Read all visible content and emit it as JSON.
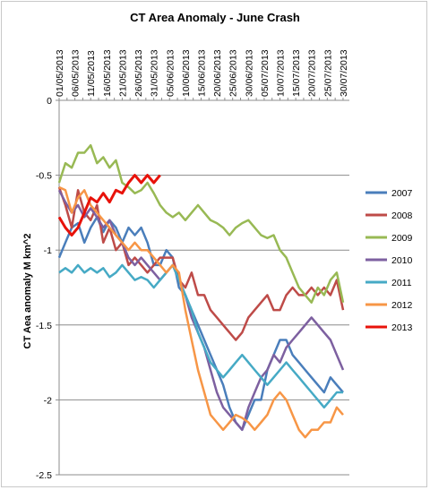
{
  "chart_data": {
    "type": "line",
    "title": "CT Area Anomaly - June Crash",
    "xlabel": "",
    "ylabel": "CT Aea anomaly M km^2",
    "ylim": [
      -2.5,
      0
    ],
    "yticks": [
      0,
      -0.5,
      -1,
      -1.5,
      -2,
      -2.5
    ],
    "ytick_labels": [
      "0",
      "-0.5",
      "-1",
      "-1.5",
      "-2",
      "-2.5"
    ],
    "x_range": [
      "01/05/2013",
      "01/08/2013"
    ],
    "x_tick_labels": [
      "01/05/2013",
      "06/05/2013",
      "11/05/2013",
      "16/05/2013",
      "21/05/2013",
      "26/05/2013",
      "31/05/2013",
      "05/06/2013",
      "10/06/2013",
      "15/06/2013",
      "20/06/2013",
      "25/06/2013",
      "30/06/2013",
      "05/07/2013",
      "10/07/2013",
      "15/07/2013",
      "20/07/2013",
      "25/07/2013",
      "30/07/2013"
    ],
    "x_tick_days": [
      0,
      5,
      10,
      15,
      20,
      25,
      30,
      35,
      40,
      45,
      50,
      55,
      60,
      65,
      70,
      75,
      80,
      85,
      90
    ],
    "grid": "horizontal",
    "legend_position": "right",
    "series": [
      {
        "name": "2007",
        "color": "#4a7ebb",
        "points": [
          [
            0,
            -1.05
          ],
          [
            2,
            -0.95
          ],
          [
            4,
            -0.85
          ],
          [
            6,
            -0.82
          ],
          [
            8,
            -0.95
          ],
          [
            10,
            -0.85
          ],
          [
            12,
            -0.78
          ],
          [
            14,
            -0.88
          ],
          [
            16,
            -0.8
          ],
          [
            18,
            -0.85
          ],
          [
            20,
            -0.95
          ],
          [
            22,
            -0.85
          ],
          [
            24,
            -0.9
          ],
          [
            26,
            -0.85
          ],
          [
            28,
            -0.95
          ],
          [
            30,
            -1.1
          ],
          [
            32,
            -1.1
          ],
          [
            34,
            -1.0
          ],
          [
            36,
            -1.05
          ],
          [
            38,
            -1.25
          ],
          [
            40,
            -1.3
          ],
          [
            42,
            -1.4
          ],
          [
            44,
            -1.5
          ],
          [
            46,
            -1.6
          ],
          [
            48,
            -1.7
          ],
          [
            50,
            -1.8
          ],
          [
            52,
            -1.9
          ],
          [
            54,
            -2.05
          ],
          [
            56,
            -2.15
          ],
          [
            58,
            -2.2
          ],
          [
            60,
            -2.1
          ],
          [
            62,
            -2.0
          ],
          [
            64,
            -2.0
          ],
          [
            66,
            -1.8
          ],
          [
            68,
            -1.7
          ],
          [
            70,
            -1.6
          ],
          [
            72,
            -1.6
          ],
          [
            74,
            -1.7
          ],
          [
            76,
            -1.75
          ],
          [
            78,
            -1.8
          ],
          [
            80,
            -1.85
          ],
          [
            82,
            -1.9
          ],
          [
            84,
            -1.95
          ],
          [
            86,
            -1.85
          ],
          [
            88,
            -1.9
          ],
          [
            90,
            -1.95
          ]
        ]
      },
      {
        "name": "2008",
        "color": "#be4b48",
        "points": [
          [
            0,
            -0.58
          ],
          [
            2,
            -0.7
          ],
          [
            4,
            -0.85
          ],
          [
            6,
            -0.6
          ],
          [
            8,
            -0.75
          ],
          [
            10,
            -0.8
          ],
          [
            12,
            -0.7
          ],
          [
            14,
            -0.95
          ],
          [
            16,
            -0.85
          ],
          [
            18,
            -1.0
          ],
          [
            20,
            -0.95
          ],
          [
            22,
            -1.1
          ],
          [
            24,
            -1.05
          ],
          [
            26,
            -1.1
          ],
          [
            28,
            -1.15
          ],
          [
            30,
            -1.1
          ],
          [
            32,
            -1.05
          ],
          [
            34,
            -1.05
          ],
          [
            36,
            -1.05
          ],
          [
            38,
            -1.2
          ],
          [
            40,
            -1.25
          ],
          [
            42,
            -1.15
          ],
          [
            44,
            -1.3
          ],
          [
            46,
            -1.3
          ],
          [
            48,
            -1.4
          ],
          [
            50,
            -1.45
          ],
          [
            52,
            -1.5
          ],
          [
            54,
            -1.55
          ],
          [
            56,
            -1.6
          ],
          [
            58,
            -1.55
          ],
          [
            60,
            -1.45
          ],
          [
            62,
            -1.4
          ],
          [
            64,
            -1.35
          ],
          [
            66,
            -1.3
          ],
          [
            68,
            -1.4
          ],
          [
            70,
            -1.4
          ],
          [
            72,
            -1.3
          ],
          [
            74,
            -1.25
          ],
          [
            76,
            -1.3
          ],
          [
            78,
            -1.3
          ],
          [
            80,
            -1.25
          ],
          [
            82,
            -1.3
          ],
          [
            84,
            -1.25
          ],
          [
            86,
            -1.3
          ],
          [
            88,
            -1.2
          ],
          [
            90,
            -1.4
          ]
        ]
      },
      {
        "name": "2009",
        "color": "#98b954",
        "points": [
          [
            0,
            -0.55
          ],
          [
            2,
            -0.42
          ],
          [
            4,
            -0.45
          ],
          [
            6,
            -0.35
          ],
          [
            8,
            -0.35
          ],
          [
            10,
            -0.3
          ],
          [
            12,
            -0.42
          ],
          [
            14,
            -0.38
          ],
          [
            16,
            -0.45
          ],
          [
            18,
            -0.4
          ],
          [
            20,
            -0.55
          ],
          [
            22,
            -0.58
          ],
          [
            24,
            -0.62
          ],
          [
            26,
            -0.6
          ],
          [
            28,
            -0.55
          ],
          [
            30,
            -0.62
          ],
          [
            32,
            -0.7
          ],
          [
            34,
            -0.75
          ],
          [
            36,
            -0.78
          ],
          [
            38,
            -0.75
          ],
          [
            40,
            -0.8
          ],
          [
            42,
            -0.75
          ],
          [
            44,
            -0.7
          ],
          [
            46,
            -0.75
          ],
          [
            48,
            -0.8
          ],
          [
            50,
            -0.82
          ],
          [
            52,
            -0.85
          ],
          [
            54,
            -0.9
          ],
          [
            56,
            -0.85
          ],
          [
            58,
            -0.82
          ],
          [
            60,
            -0.8
          ],
          [
            62,
            -0.85
          ],
          [
            64,
            -0.9
          ],
          [
            66,
            -0.92
          ],
          [
            68,
            -0.9
          ],
          [
            70,
            -1.0
          ],
          [
            72,
            -1.05
          ],
          [
            74,
            -1.15
          ],
          [
            76,
            -1.25
          ],
          [
            78,
            -1.3
          ],
          [
            80,
            -1.35
          ],
          [
            82,
            -1.25
          ],
          [
            84,
            -1.3
          ],
          [
            86,
            -1.2
          ],
          [
            88,
            -1.15
          ],
          [
            90,
            -1.35
          ]
        ]
      },
      {
        "name": "2010",
        "color": "#7d60a0",
        "points": [
          [
            0,
            -0.6
          ],
          [
            2,
            -0.68
          ],
          [
            4,
            -0.75
          ],
          [
            6,
            -0.7
          ],
          [
            8,
            -0.78
          ],
          [
            10,
            -0.72
          ],
          [
            12,
            -0.78
          ],
          [
            14,
            -0.85
          ],
          [
            16,
            -0.8
          ],
          [
            18,
            -0.9
          ],
          [
            20,
            -0.95
          ],
          [
            22,
            -1.05
          ],
          [
            24,
            -1.1
          ],
          [
            26,
            -1.05
          ],
          [
            28,
            -1.1
          ],
          [
            30,
            -1.15
          ],
          [
            32,
            -1.2
          ],
          [
            34,
            -1.15
          ],
          [
            36,
            -1.1
          ],
          [
            38,
            -1.2
          ],
          [
            40,
            -1.3
          ],
          [
            42,
            -1.45
          ],
          [
            44,
            -1.55
          ],
          [
            46,
            -1.65
          ],
          [
            48,
            -1.8
          ],
          [
            50,
            -1.95
          ],
          [
            52,
            -2.05
          ],
          [
            54,
            -2.1
          ],
          [
            56,
            -2.15
          ],
          [
            58,
            -2.2
          ],
          [
            60,
            -2.05
          ],
          [
            62,
            -1.95
          ],
          [
            64,
            -1.85
          ],
          [
            66,
            -1.8
          ],
          [
            68,
            -1.7
          ],
          [
            70,
            -1.75
          ],
          [
            72,
            -1.65
          ],
          [
            74,
            -1.6
          ],
          [
            76,
            -1.55
          ],
          [
            78,
            -1.5
          ],
          [
            80,
            -1.45
          ],
          [
            82,
            -1.5
          ],
          [
            84,
            -1.55
          ],
          [
            86,
            -1.6
          ],
          [
            88,
            -1.7
          ],
          [
            90,
            -1.8
          ]
        ]
      },
      {
        "name": "2011",
        "color": "#46aac5",
        "points": [
          [
            0,
            -1.15
          ],
          [
            2,
            -1.12
          ],
          [
            4,
            -1.15
          ],
          [
            6,
            -1.1
          ],
          [
            8,
            -1.15
          ],
          [
            10,
            -1.12
          ],
          [
            12,
            -1.15
          ],
          [
            14,
            -1.12
          ],
          [
            16,
            -1.18
          ],
          [
            18,
            -1.15
          ],
          [
            20,
            -1.1
          ],
          [
            22,
            -1.15
          ],
          [
            24,
            -1.2
          ],
          [
            26,
            -1.18
          ],
          [
            28,
            -1.2
          ],
          [
            30,
            -1.25
          ],
          [
            32,
            -1.2
          ],
          [
            34,
            -1.15
          ],
          [
            36,
            -1.1
          ],
          [
            38,
            -1.2
          ],
          [
            40,
            -1.3
          ],
          [
            42,
            -1.4
          ],
          [
            44,
            -1.55
          ],
          [
            46,
            -1.65
          ],
          [
            48,
            -1.75
          ],
          [
            50,
            -1.8
          ],
          [
            52,
            -1.85
          ],
          [
            54,
            -1.8
          ],
          [
            56,
            -1.75
          ],
          [
            58,
            -1.7
          ],
          [
            60,
            -1.75
          ],
          [
            62,
            -1.8
          ],
          [
            64,
            -1.85
          ],
          [
            66,
            -1.9
          ],
          [
            68,
            -1.85
          ],
          [
            70,
            -1.8
          ],
          [
            72,
            -1.75
          ],
          [
            74,
            -1.8
          ],
          [
            76,
            -1.85
          ],
          [
            78,
            -1.9
          ],
          [
            80,
            -1.95
          ],
          [
            82,
            -2.0
          ],
          [
            84,
            -2.05
          ],
          [
            86,
            -2.0
          ],
          [
            88,
            -1.95
          ],
          [
            90,
            -1.95
          ]
        ]
      },
      {
        "name": "2012",
        "color": "#f79646",
        "points": [
          [
            0,
            -0.58
          ],
          [
            2,
            -0.6
          ],
          [
            4,
            -0.75
          ],
          [
            6,
            -0.65
          ],
          [
            8,
            -0.6
          ],
          [
            10,
            -0.7
          ],
          [
            12,
            -0.75
          ],
          [
            14,
            -0.8
          ],
          [
            16,
            -0.85
          ],
          [
            18,
            -0.9
          ],
          [
            20,
            -0.95
          ],
          [
            22,
            -1.0
          ],
          [
            24,
            -0.95
          ],
          [
            26,
            -1.0
          ],
          [
            28,
            -1.0
          ],
          [
            30,
            -1.05
          ],
          [
            32,
            -1.1
          ],
          [
            34,
            -1.15
          ],
          [
            36,
            -1.1
          ],
          [
            38,
            -1.15
          ],
          [
            40,
            -1.4
          ],
          [
            42,
            -1.6
          ],
          [
            44,
            -1.8
          ],
          [
            46,
            -1.95
          ],
          [
            48,
            -2.1
          ],
          [
            50,
            -2.15
          ],
          [
            52,
            -2.2
          ],
          [
            54,
            -2.15
          ],
          [
            56,
            -2.1
          ],
          [
            58,
            -2.12
          ],
          [
            60,
            -2.15
          ],
          [
            62,
            -2.2
          ],
          [
            64,
            -2.15
          ],
          [
            66,
            -2.1
          ],
          [
            68,
            -2.0
          ],
          [
            70,
            -1.95
          ],
          [
            72,
            -2.0
          ],
          [
            74,
            -2.1
          ],
          [
            76,
            -2.2
          ],
          [
            78,
            -2.25
          ],
          [
            80,
            -2.2
          ],
          [
            82,
            -2.2
          ],
          [
            84,
            -2.15
          ],
          [
            86,
            -2.15
          ],
          [
            88,
            -2.05
          ],
          [
            90,
            -2.1
          ]
        ]
      },
      {
        "name": "2013",
        "color": "#e8120a",
        "points": [
          [
            0,
            -0.78
          ],
          [
            2,
            -0.85
          ],
          [
            4,
            -0.9
          ],
          [
            6,
            -0.85
          ],
          [
            8,
            -0.75
          ],
          [
            10,
            -0.65
          ],
          [
            12,
            -0.68
          ],
          [
            14,
            -0.62
          ],
          [
            16,
            -0.68
          ],
          [
            18,
            -0.6
          ],
          [
            20,
            -0.62
          ],
          [
            22,
            -0.55
          ],
          [
            24,
            -0.5
          ],
          [
            26,
            -0.55
          ],
          [
            28,
            -0.5
          ],
          [
            30,
            -0.55
          ],
          [
            32,
            -0.5
          ]
        ]
      }
    ]
  }
}
